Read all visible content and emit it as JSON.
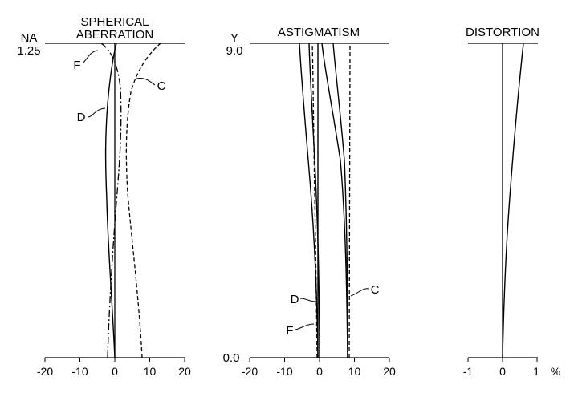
{
  "panels": {
    "spherical": {
      "title_line1": "SPHERICAL",
      "title_line2": "ABERRATION",
      "y_axis_name": "NA",
      "y_axis_top": "1.25",
      "ticks": [
        "-20",
        "-10",
        "0",
        "10",
        "20"
      ],
      "curve_labels": {
        "F": "F",
        "D": "D",
        "C": "C"
      }
    },
    "astigmatism": {
      "title": "ASTIGMATISM",
      "y_axis_name": "Y",
      "y_axis_top": "9.0",
      "y_axis_bottom": "0.0",
      "ticks": [
        "-20",
        "-10",
        "0",
        "10",
        "20"
      ],
      "curve_labels": {
        "D": "D",
        "F": "F",
        "C": "C"
      }
    },
    "distortion": {
      "title": "DISTORTION",
      "ticks": [
        "-1",
        "0",
        "1"
      ],
      "unit": "%"
    }
  },
  "chart_data": [
    {
      "type": "line",
      "panel": "spherical",
      "x_ticks": [
        -20,
        -10,
        0,
        10,
        20
      ],
      "xlim": [
        -20,
        20
      ],
      "ylim": [
        0,
        1.25
      ],
      "y_unit": "NA",
      "series": [
        {
          "name": "D",
          "style": "solid",
          "points": [
            [
              0,
              0
            ],
            [
              -0.4,
              0.15
            ],
            [
              -0.8,
              0.3
            ],
            [
              -1.4,
              0.45
            ],
            [
              -2,
              0.6
            ],
            [
              -2.3,
              0.75
            ],
            [
              -2.2,
              0.9
            ],
            [
              -1.4,
              1.05
            ],
            [
              -0.2,
              1.17
            ],
            [
              0.5,
              1.25
            ]
          ]
        },
        {
          "name": "F",
          "style": "dash-dot",
          "points": [
            [
              -2,
              0
            ],
            [
              -1.7,
              0.15
            ],
            [
              -1.2,
              0.3
            ],
            [
              -0.5,
              0.45
            ],
            [
              0.3,
              0.6
            ],
            [
              1,
              0.75
            ],
            [
              1.6,
              0.9
            ],
            [
              1.8,
              1.05
            ],
            [
              1,
              1.17
            ],
            [
              -1.5,
              1.25
            ]
          ]
        },
        {
          "name": "C",
          "style": "dashed",
          "points": [
            [
              8,
              0
            ],
            [
              7.4,
              0.15
            ],
            [
              6.6,
              0.3
            ],
            [
              5.6,
              0.45
            ],
            [
              4.6,
              0.6
            ],
            [
              3.8,
              0.75
            ],
            [
              3.5,
              0.9
            ],
            [
              4.2,
              1.05
            ],
            [
              7.5,
              1.17
            ],
            [
              13,
              1.25
            ]
          ]
        }
      ]
    },
    {
      "type": "line",
      "panel": "astigmatism",
      "x_ticks": [
        -20,
        -10,
        0,
        10,
        20
      ],
      "xlim": [
        -20,
        20
      ],
      "ylim": [
        0,
        9
      ],
      "y_unit": "Y",
      "series": [
        {
          "name": "D",
          "style": "solid",
          "points": [
            [
              0,
              0
            ],
            [
              -0.2,
              3
            ],
            [
              -1.3,
              6
            ],
            [
              -3,
              9
            ]
          ]
        },
        {
          "name": "D",
          "style": "solid",
          "points": [
            [
              0,
              0
            ],
            [
              -0.5,
              3
            ],
            [
              -2.4,
              6
            ],
            [
              -5.5,
              9
            ]
          ]
        },
        {
          "name": "F",
          "style": "solid",
          "points": [
            [
              -0.4,
              0
            ],
            [
              -0.4,
              9
            ]
          ]
        },
        {
          "name": "F",
          "style": "dashed",
          "points": [
            [
              -0.6,
              0
            ],
            [
              -0.9,
              3
            ],
            [
              -1.4,
              6
            ],
            [
              -2,
              9
            ]
          ]
        },
        {
          "name": "C",
          "style": "solid",
          "points": [
            [
              8,
              0
            ],
            [
              7.9,
              3
            ],
            [
              7,
              6
            ],
            [
              4,
              9
            ]
          ]
        },
        {
          "name": "C",
          "style": "solid",
          "points": [
            [
              8,
              0
            ],
            [
              7.7,
              3
            ],
            [
              5,
              6
            ],
            [
              0.5,
              9
            ]
          ]
        },
        {
          "name": "C",
          "style": "dashed",
          "points": [
            [
              8.3,
              0
            ],
            [
              8.3,
              3
            ],
            [
              8.4,
              6
            ],
            [
              9,
              9
            ]
          ]
        }
      ]
    },
    {
      "type": "line",
      "panel": "distortion",
      "x_ticks": [
        -1,
        0,
        1
      ],
      "xlim": [
        -1,
        1
      ],
      "ylim": [
        0,
        9
      ],
      "x_unit": "%",
      "series": [
        {
          "name": "D",
          "style": "solid",
          "points": [
            [
              0,
              0
            ],
            [
              0.05,
              2
            ],
            [
              0.18,
              4
            ],
            [
              0.35,
              6
            ],
            [
              0.6,
              9
            ]
          ]
        }
      ]
    }
  ]
}
